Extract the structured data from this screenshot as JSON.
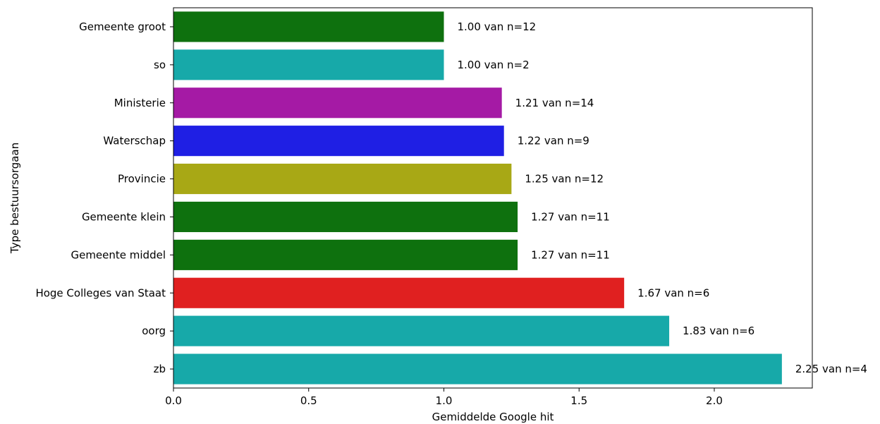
{
  "chart_data": {
    "type": "bar",
    "orientation": "horizontal",
    "xlabel": "Gemiddelde Google hit",
    "ylabel": "Type bestuursorgaan",
    "xlim": [
      0,
      2.3625
    ],
    "xticks": [
      "0.0",
      "0.5",
      "1.0",
      "1.5",
      "2.0"
    ],
    "xtick_values": [
      0,
      0.5,
      1.0,
      1.5,
      2.0
    ],
    "grid": false,
    "categories": [
      "Gemeente groot",
      "so",
      "Ministerie",
      "Waterschap",
      "Provincie",
      "Gemeente klein",
      "Gemeente middel",
      "Hoge Colleges van Staat",
      "oorg",
      "zb"
    ],
    "values": [
      1.0,
      1.0,
      1.2143,
      1.2222,
      1.25,
      1.2727,
      1.2727,
      1.6667,
      1.8333,
      2.25
    ],
    "data_labels": [
      "1.00 van n=12",
      "1.00 van n=2",
      "1.21 van n=14",
      "1.22 van n=9",
      "1.25 van n=12",
      "1.27 van n=11",
      "1.27 van n=11",
      "1.67 van n=6",
      "1.83 van n=6",
      "2.25 van n=4"
    ],
    "colors": [
      "#0e710e",
      "#17a9a9",
      "#a51aa5",
      "#1f1fe4",
      "#a8a815",
      "#0e710e",
      "#0e710e",
      "#e02020",
      "#17a9a9",
      "#17a9a9"
    ]
  }
}
